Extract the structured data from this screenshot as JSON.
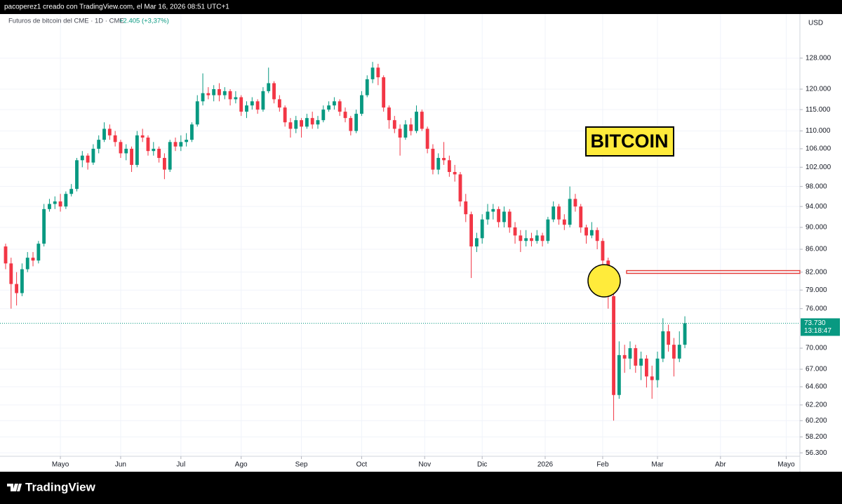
{
  "header": {
    "text": "pacoperez1 creado con TradingView.com, el Mar 16, 2026 08:51 UTC+1"
  },
  "chart_data": {
    "type": "candlestick",
    "title": "Futuros de bitcoin del CME · 1D · CME",
    "change": "+2.405 (+3,37%)",
    "currency": "USD",
    "annotation": "BITCOIN",
    "log_scale": true,
    "grid": true,
    "up_color": "#089981",
    "down_color": "#f23645",
    "last_price": {
      "value": 73730,
      "label": "73.730"
    },
    "countdown": "13:18:47",
    "xlim": [
      0,
      145
    ],
    "xticks": [
      {
        "value": 10,
        "label": "Mayo"
      },
      {
        "value": 21,
        "label": "Jun"
      },
      {
        "value": 32,
        "label": "Jul"
      },
      {
        "value": 43,
        "label": "Ago"
      },
      {
        "value": 54,
        "label": "Sep"
      },
      {
        "value": 65,
        "label": "Oct"
      },
      {
        "value": 76.5,
        "label": "Nov"
      },
      {
        "value": 87,
        "label": "Dic"
      },
      {
        "value": 98.5,
        "label": "2026"
      },
      {
        "value": 109,
        "label": "Feb"
      },
      {
        "value": 119,
        "label": "Mar"
      },
      {
        "value": 130.5,
        "label": "Abr"
      },
      {
        "value": 142.5,
        "label": "Mayo"
      }
    ],
    "ylim": [
      55900,
      140300
    ],
    "yticks": [
      {
        "value": 128000,
        "label": "128.000"
      },
      {
        "value": 120000,
        "label": "120.000"
      },
      {
        "value": 115000,
        "label": "115.000"
      },
      {
        "value": 110000,
        "label": "110.000"
      },
      {
        "value": 106000,
        "label": "106.000"
      },
      {
        "value": 102000,
        "label": "102.000"
      },
      {
        "value": 98000,
        "label": "98.000"
      },
      {
        "value": 94000,
        "label": "94.000"
      },
      {
        "value": 90000,
        "label": "90.000"
      },
      {
        "value": 86000,
        "label": "86.000"
      },
      {
        "value": 82000,
        "label": "82.000"
      },
      {
        "value": 79000,
        "label": "79.000"
      },
      {
        "value": 76000,
        "label": "76.000"
      },
      {
        "value": 70000,
        "label": "70.000"
      },
      {
        "value": 67000,
        "label": "67.000"
      },
      {
        "value": 64600,
        "label": "64.600"
      },
      {
        "value": 62200,
        "label": "62.200"
      },
      {
        "value": 60200,
        "label": "60.200"
      },
      {
        "value": 58200,
        "label": "58.200"
      },
      {
        "value": 56300,
        "label": "56.300"
      }
    ],
    "open": [
      86500,
      83500,
      80000,
      78500,
      82500,
      84500,
      84000,
      87000,
      93500,
      94500,
      95000,
      94000,
      96500,
      97500,
      103500,
      104500,
      103000,
      106000,
      108000,
      110500,
      109000,
      107500,
      105000,
      106000,
      102500,
      109000,
      108500,
      105500,
      106000,
      104000,
      101500,
      107500,
      106500,
      107500,
      108000,
      111500,
      117000,
      119000,
      118500,
      120000,
      118500,
      119500,
      117500,
      118000,
      114500,
      116000,
      117000,
      115000,
      119500,
      121500,
      117500,
      115500,
      112000,
      110500,
      112500,
      111000,
      113000,
      111500,
      112500,
      115000,
      116000,
      117000,
      114500,
      113000,
      110000,
      114000,
      118500,
      122500,
      125500,
      123000,
      115500,
      112500,
      110500,
      108500,
      111500,
      110000,
      114500,
      110500,
      106000,
      101500,
      104000,
      103500,
      101000,
      100500,
      95000,
      92500,
      86500,
      88000,
      91500,
      93000,
      93500,
      91000,
      93000,
      90000,
      88500,
      87500,
      88000,
      87500,
      88500,
      87500,
      91500,
      94000,
      91500,
      90500,
      95500,
      94000,
      90000,
      88500,
      89500,
      87500,
      84000,
      78000,
      63500,
      69000,
      68500,
      70000,
      67500,
      68500,
      66000,
      65500,
      68500,
      72500,
      70500,
      68500,
      70500
    ],
    "high": [
      87000,
      84500,
      82000,
      83500,
      85500,
      85500,
      87500,
      94500,
      95500,
      96000,
      96500,
      97000,
      98500,
      104000,
      105500,
      105000,
      107000,
      109000,
      112000,
      111500,
      110000,
      108000,
      107000,
      106500,
      110000,
      110500,
      109000,
      107500,
      106500,
      105000,
      108000,
      108500,
      109000,
      109500,
      112000,
      118500,
      124000,
      120500,
      121000,
      121500,
      120500,
      120000,
      119500,
      118500,
      117000,
      118000,
      117500,
      120500,
      125500,
      122000,
      118500,
      116000,
      113000,
      113500,
      113000,
      114000,
      114500,
      113500,
      116000,
      117000,
      118000,
      117500,
      115500,
      113500,
      115000,
      119500,
      123500,
      127000,
      126500,
      123500,
      116000,
      113500,
      111500,
      112500,
      113000,
      116000,
      115000,
      111000,
      107000,
      105000,
      107500,
      104500,
      102500,
      101000,
      96500,
      93000,
      89000,
      92500,
      94500,
      94500,
      94000,
      94000,
      93500,
      91000,
      89500,
      89500,
      89000,
      89500,
      89000,
      92000,
      95000,
      94500,
      92500,
      98000,
      96500,
      94500,
      90500,
      91000,
      90000,
      88000,
      84500,
      78500,
      71000,
      70500,
      71000,
      70500,
      69500,
      69000,
      67500,
      69500,
      74500,
      73500,
      71500,
      72500,
      74800
    ],
    "low": [
      82500,
      76000,
      76500,
      78000,
      82000,
      83000,
      83500,
      86500,
      93000,
      93500,
      93000,
      93500,
      96000,
      97000,
      102000,
      101500,
      102500,
      105000,
      107500,
      108000,
      106500,
      104000,
      103500,
      101000,
      102000,
      107500,
      104500,
      104500,
      103000,
      99500,
      101000,
      105500,
      105500,
      106500,
      107500,
      111000,
      116000,
      117500,
      117000,
      117000,
      117500,
      116000,
      116500,
      113500,
      113000,
      115000,
      114000,
      114500,
      119000,
      116500,
      114500,
      111000,
      108500,
      109500,
      108500,
      110500,
      110500,
      110500,
      112000,
      114500,
      115000,
      113500,
      112000,
      109000,
      109500,
      113500,
      118000,
      121500,
      121000,
      114500,
      110500,
      109500,
      104500,
      108000,
      109000,
      109500,
      110000,
      105000,
      100500,
      100500,
      102500,
      100000,
      99000,
      94000,
      91000,
      81000,
      85500,
      87000,
      90500,
      91500,
      90000,
      90000,
      89000,
      87000,
      85500,
      86500,
      86500,
      87000,
      86500,
      87000,
      91000,
      90500,
      89500,
      90000,
      93000,
      89000,
      87000,
      88000,
      86000,
      83000,
      76000,
      60200,
      63000,
      66500,
      67000,
      66500,
      65500,
      64500,
      63000,
      64500,
      68000,
      69500,
      66000,
      68000,
      70000
    ],
    "close": [
      83500,
      80000,
      78500,
      82500,
      84500,
      84000,
      87000,
      93500,
      94500,
      95000,
      94000,
      96500,
      97500,
      103500,
      104500,
      103000,
      106000,
      108000,
      110500,
      109000,
      107500,
      105000,
      106000,
      102500,
      109000,
      108500,
      105500,
      106000,
      104000,
      101500,
      107500,
      106500,
      107500,
      108000,
      111500,
      117000,
      119000,
      118500,
      120000,
      118500,
      119500,
      117500,
      118000,
      114500,
      116000,
      117000,
      115000,
      119500,
      121500,
      117500,
      115500,
      112000,
      110500,
      112500,
      111000,
      113000,
      111500,
      112500,
      115000,
      116000,
      117000,
      114500,
      113000,
      110000,
      114000,
      118500,
      122500,
      125500,
      123000,
      115500,
      112500,
      110500,
      108500,
      111500,
      110000,
      114500,
      110500,
      106000,
      101500,
      104000,
      103500,
      101000,
      100500,
      95000,
      92500,
      86500,
      88000,
      91500,
      93000,
      93500,
      91000,
      93000,
      90000,
      88500,
      87500,
      88000,
      87500,
      88500,
      87500,
      91500,
      94000,
      91500,
      90500,
      95500,
      94000,
      90000,
      88500,
      89500,
      87500,
      84000,
      78000,
      63500,
      69000,
      68500,
      70000,
      67500,
      68500,
      66000,
      65500,
      68500,
      72500,
      70500,
      68500,
      70500,
      73730
    ]
  },
  "footer": {
    "brand": "TradingView"
  }
}
